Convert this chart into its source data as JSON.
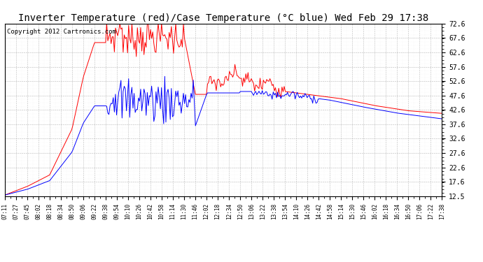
{
  "title": "Inverter Temperature (red)/Case Temperature (°C blue) Wed Feb 29 17:38",
  "copyright": "Copyright 2012 Cartronics.com",
  "y_ticks": [
    12.5,
    17.6,
    22.6,
    27.6,
    32.6,
    37.6,
    42.6,
    47.6,
    52.6,
    57.6,
    62.6,
    67.6,
    72.6
  ],
  "y_min": 12.5,
  "y_max": 72.6,
  "x_labels": [
    "07:11",
    "07:27",
    "07:45",
    "08:02",
    "08:18",
    "08:34",
    "08:50",
    "09:06",
    "09:22",
    "09:38",
    "09:54",
    "10:10",
    "10:26",
    "10:42",
    "10:58",
    "11:14",
    "11:30",
    "11:46",
    "12:02",
    "12:18",
    "12:34",
    "12:50",
    "13:06",
    "13:22",
    "13:38",
    "13:54",
    "14:10",
    "14:26",
    "14:42",
    "14:58",
    "15:14",
    "15:30",
    "15:46",
    "16:02",
    "16:18",
    "16:34",
    "16:50",
    "17:06",
    "17:22",
    "17:38"
  ],
  "red_color": "#ff0000",
  "blue_color": "#0000ff",
  "bg_color": "#ffffff",
  "grid_color": "#aaaaaa",
  "title_fontsize": 10,
  "copyright_fontsize": 6.5
}
